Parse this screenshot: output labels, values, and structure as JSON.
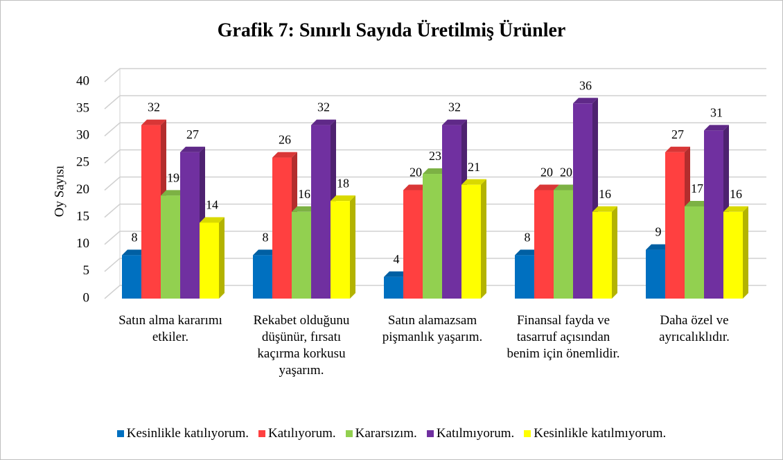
{
  "chart_data": {
    "type": "bar",
    "title": "Grafik 7: Sınırlı Sayıda Üretilmiş Ürünler",
    "y_label": "Oy Sayısı",
    "categories": [
      "Satın alma kararımı etkiler.",
      "Rekabet olduğunu düşünür, fırsatı kaçırma korkusu yaşarım.",
      "Satın alamazsam pişmanlık yaşarım.",
      "Finansal fayda ve tasarruf açısından benim için önemlidir.",
      "Daha özel ve ayrıcalıklıdır."
    ],
    "series": [
      {
        "name": "Kesinlikle katılıyorum.",
        "color": "#0070c0",
        "values": [
          8,
          8,
          4,
          8,
          9
        ]
      },
      {
        "name": "Katılıyorum.",
        "color": "#ff4040",
        "values": [
          32,
          26,
          20,
          20,
          27
        ]
      },
      {
        "name": "Kararsızım.",
        "color": "#92d050",
        "values": [
          19,
          16,
          23,
          20,
          17
        ]
      },
      {
        "name": "Katılmıyorum.",
        "color": "#7030a0",
        "values": [
          27,
          32,
          32,
          36,
          31
        ]
      },
      {
        "name": "Kesinlikle katılmıyorum.",
        "color": "#ffff00",
        "values": [
          14,
          18,
          21,
          16,
          16
        ]
      }
    ],
    "ylim": [
      0,
      40
    ],
    "yticks": [
      0,
      5,
      10,
      15,
      20,
      25,
      30,
      35,
      40
    ],
    "grid": true,
    "legend": "bottom"
  }
}
